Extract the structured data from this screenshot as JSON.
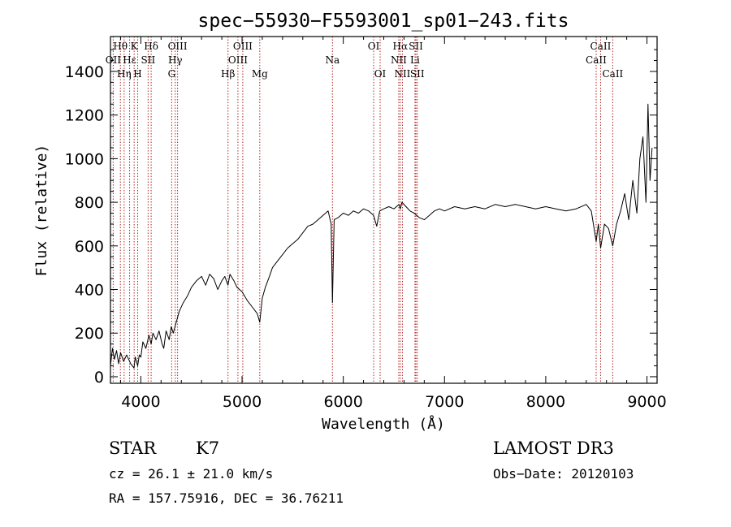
{
  "chart_data": {
    "type": "line",
    "title": "spec−55930−F5593001_sp01−243.fits",
    "xlabel": "Wavelength (Å)",
    "ylabel": "Flux (relative)",
    "xlim": [
      3700,
      9100
    ],
    "ylim": [
      -30,
      1560
    ],
    "x_ticks": [
      4000,
      5000,
      6000,
      7000,
      8000,
      9000
    ],
    "y_ticks": [
      0,
      200,
      400,
      600,
      800,
      1000,
      1200,
      1400
    ],
    "grid": false,
    "line_color": "#000000",
    "marker_color": "#b22222",
    "spectral_lines": [
      {
        "label": "Hθ",
        "wavelength": 3798,
        "row": 0
      },
      {
        "label": "OII",
        "wavelength": 3727,
        "row": 1
      },
      {
        "label": "Hη",
        "wavelength": 3835,
        "row": 2
      },
      {
        "label": "K",
        "wavelength": 3934,
        "row": 0
      },
      {
        "label": "Hε",
        "wavelength": 3889,
        "row": 1
      },
      {
        "label": "H",
        "wavelength": 3969,
        "row": 2
      },
      {
        "label": "SII",
        "wavelength": 4072,
        "row": 1
      },
      {
        "label": "Hδ",
        "wavelength": 4102,
        "row": 0
      },
      {
        "label": "OIII",
        "wavelength": 4363,
        "row": 0
      },
      {
        "label": "Hγ",
        "wavelength": 4340,
        "row": 1
      },
      {
        "label": "G",
        "wavelength": 4305,
        "row": 2
      },
      {
        "label": "Hβ",
        "wavelength": 4861,
        "row": 2
      },
      {
        "label": "OIII",
        "wavelength": 5007,
        "row": 0
      },
      {
        "label": "OIII",
        "wavelength": 4959,
        "row": 1
      },
      {
        "label": "Mg",
        "wavelength": 5175,
        "row": 2
      },
      {
        "label": "Na",
        "wavelength": 5893,
        "row": 1
      },
      {
        "label": "OI",
        "wavelength": 6300,
        "row": 0
      },
      {
        "label": "OI",
        "wavelength": 6364,
        "row": 2
      },
      {
        "label": "Hα",
        "wavelength": 6563,
        "row": 0
      },
      {
        "label": "NII",
        "wavelength": 6548,
        "row": 1
      },
      {
        "label": "NII",
        "wavelength": 6584,
        "row": 2
      },
      {
        "label": "SII",
        "wavelength": 6717,
        "row": 0
      },
      {
        "label": "Li",
        "wavelength": 6708,
        "row": 1
      },
      {
        "label": "SII",
        "wavelength": 6731,
        "row": 2
      },
      {
        "label": "CaII",
        "wavelength": 8542,
        "row": 0
      },
      {
        "label": "CaII",
        "wavelength": 8498,
        "row": 1
      },
      {
        "label": "CaII",
        "wavelength": 8662,
        "row": 2
      }
    ],
    "series": [
      {
        "x": [
          3700,
          3720,
          3740,
          3760,
          3780,
          3800,
          3830,
          3860,
          3900,
          3933,
          3945,
          3969,
          3985,
          4000,
          4020,
          4050,
          4080,
          4102,
          4120,
          4150,
          4180,
          4210,
          4226,
          4250,
          4280,
          4300,
          4320,
          4350,
          4380,
          4420,
          4460,
          4500,
          4550,
          4600,
          4640,
          4680,
          4720,
          4760,
          4800,
          4830,
          4861,
          4880,
          4920,
          4950,
          5000,
          5050,
          5100,
          5150,
          5175,
          5200,
          5230,
          5270,
          5300,
          5350,
          5400,
          5450,
          5500,
          5550,
          5600,
          5650,
          5700,
          5750,
          5800,
          5850,
          5880,
          5893,
          5910,
          5950,
          6000,
          6050,
          6100,
          6150,
          6200,
          6250,
          6300,
          6330,
          6360,
          6400,
          6450,
          6500,
          6550,
          6563,
          6580,
          6620,
          6660,
          6700,
          6750,
          6800,
          6850,
          6900,
          6950,
          7000,
          7100,
          7200,
          7300,
          7400,
          7500,
          7600,
          7700,
          7800,
          7900,
          8000,
          8100,
          8200,
          8300,
          8400,
          8450,
          8498,
          8520,
          8542,
          8580,
          8620,
          8662,
          8700,
          8740,
          8780,
          8820,
          8860,
          8900,
          8930,
          8960,
          8990,
          9010,
          9030,
          9050
        ],
        "y": [
          50,
          130,
          80,
          120,
          60,
          110,
          70,
          100,
          60,
          40,
          90,
          50,
          100,
          90,
          160,
          130,
          190,
          150,
          200,
          170,
          210,
          150,
          130,
          210,
          170,
          230,
          200,
          250,
          300,
          340,
          370,
          410,
          440,
          460,
          420,
          470,
          450,
          400,
          440,
          460,
          420,
          470,
          440,
          410,
          390,
          350,
          320,
          290,
          250,
          360,
          410,
          460,
          500,
          530,
          560,
          590,
          610,
          630,
          660,
          690,
          700,
          720,
          740,
          760,
          700,
          340,
          720,
          730,
          750,
          740,
          760,
          750,
          770,
          760,
          740,
          690,
          760,
          770,
          780,
          770,
          790,
          770,
          800,
          780,
          760,
          750,
          730,
          720,
          740,
          760,
          770,
          760,
          780,
          770,
          780,
          770,
          790,
          780,
          790,
          780,
          770,
          780,
          770,
          760,
          770,
          790,
          760,
          620,
          700,
          590,
          700,
          680,
          600,
          700,
          760,
          840,
          720,
          900,
          750,
          1000,
          1100,
          800,
          1250,
          900,
          1050
        ]
      }
    ]
  },
  "footer": {
    "object_class": "STAR",
    "subclass": "K7",
    "survey": "LAMOST DR3",
    "redshift": "cz = 26.1 ± 21.0 km/s",
    "obs_date": "Obs−Date: 20120103",
    "coords": "RA = 157.75916, DEC =  36.76211"
  }
}
